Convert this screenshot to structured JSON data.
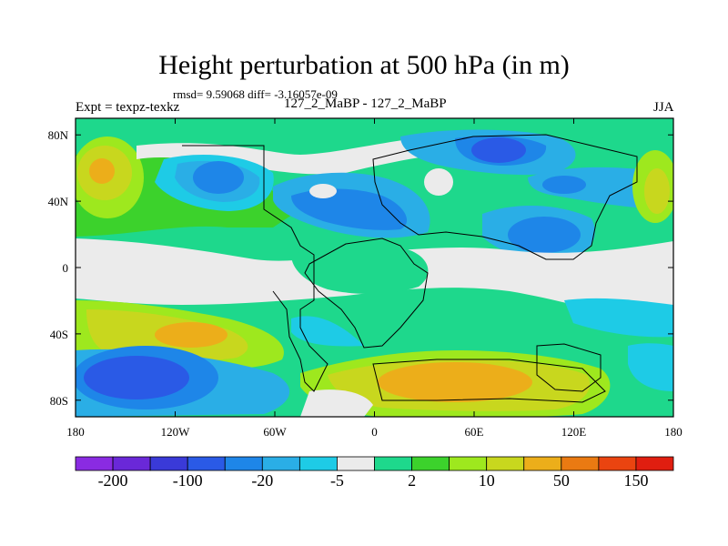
{
  "title": "Height perturbation at 500 hPa (in m)",
  "rmsd_line": "rmsd= 9.59068 diff= -3.16057e-09",
  "experiment": "Expt = texpz-texkz",
  "case_label": "127_2_MaBP - 127_2_MaBP",
  "season": "JJA",
  "map": {
    "lon_ticks": [
      "180",
      "120W",
      "60W",
      "0",
      "60E",
      "120E",
      "180"
    ],
    "lat_ticks": [
      "80N",
      "40N",
      "0",
      "40S",
      "80S"
    ]
  },
  "colorbar": {
    "colors": [
      "#8a2be2",
      "#6a28d8",
      "#3a3ad8",
      "#2a5ae6",
      "#1e86e8",
      "#2aaee6",
      "#1ecbe6",
      "#ebebeb",
      "#1ed88c",
      "#3cd22c",
      "#9ee81e",
      "#c8d71e",
      "#ecae1a",
      "#ea7a12",
      "#ea4410",
      "#e01e10"
    ],
    "labels": [
      "-200",
      "-100",
      "-20",
      "-5",
      "2",
      "10",
      "50",
      "150"
    ]
  },
  "field_colors": {
    "neutral": "#ebebeb",
    "green": "#1ed88c",
    "lightgreen": "#3cd22c",
    "yellowgreen": "#9ee81e",
    "olive": "#c8d71e",
    "orange": "#ecae1a",
    "cyan": "#1ecbe6",
    "skyblue": "#2aaee6",
    "blue": "#1e86e8",
    "deepblue": "#2a5ae6",
    "navy": "#3a3ad8",
    "coastline": "#000000"
  }
}
